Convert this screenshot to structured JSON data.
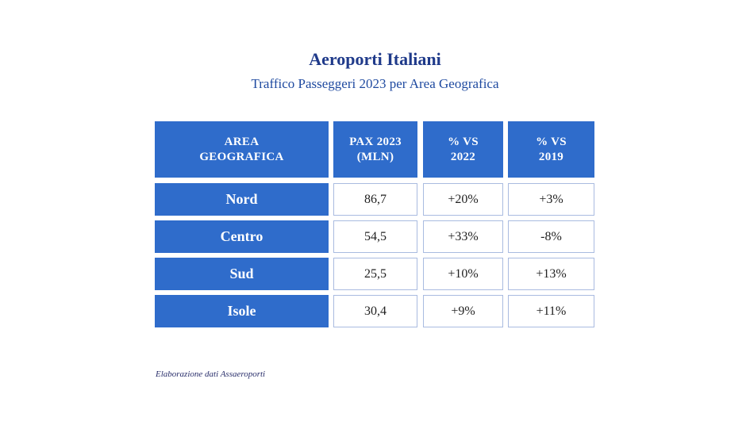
{
  "title": "Aeroporti Italiani",
  "subtitle": "Traffico Passeggeri 2023 per Area Geografica",
  "source": "Elaborazione dati Assaeroporti",
  "colors": {
    "header_bg": "#2f6ccb",
    "title": "#1f3a8a",
    "cell_border": "#a9bbe0"
  },
  "chart_data": {
    "type": "table",
    "columns": [
      "AREA\nGEOGRAFICA",
      "PAX 2023\n(MLN)",
      "% VS\n2022",
      "% VS\n2019"
    ],
    "rows": [
      [
        "Nord",
        "86,7",
        "+20%",
        "+3%"
      ],
      [
        "Centro",
        "54,5",
        "+33%",
        "-8%"
      ],
      [
        "Sud",
        "25,5",
        "+10%",
        "+13%"
      ],
      [
        "Isole",
        "30,4",
        "+9%",
        "+11%"
      ]
    ]
  }
}
